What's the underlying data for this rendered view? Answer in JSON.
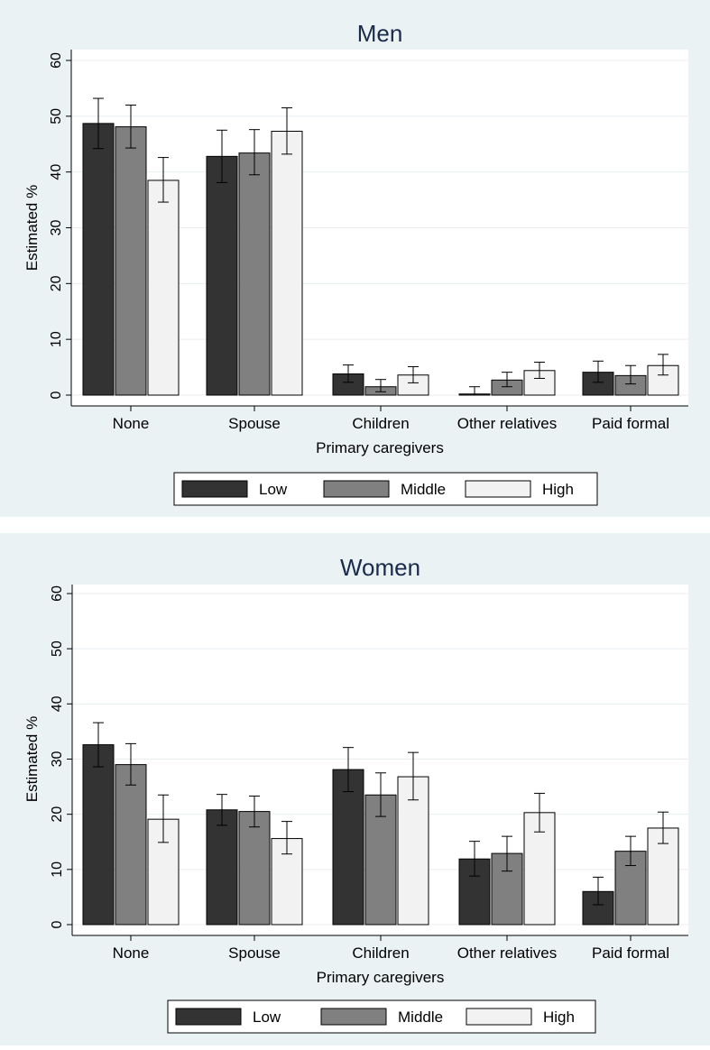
{
  "chart_data": [
    {
      "type": "bar",
      "title": "Men",
      "xlabel": "Primary caregivers",
      "ylabel": "Estimated %",
      "ylim": [
        0,
        60
      ],
      "yticks": [
        0,
        10,
        20,
        30,
        40,
        50,
        60
      ],
      "categories": [
        "None",
        "Spouse",
        "Children",
        "Other relatives",
        "Paid formal"
      ],
      "series": [
        {
          "name": "Low",
          "values": [
            48.7,
            42.8,
            3.8,
            0.2,
            4.1
          ],
          "ci_low": [
            44.2,
            38.1,
            2.3,
            0.0,
            2.3
          ],
          "ci_high": [
            53.2,
            47.5,
            5.4,
            1.5,
            6.1
          ]
        },
        {
          "name": "Middle",
          "values": [
            48.1,
            43.4,
            1.5,
            2.7,
            3.5
          ],
          "ci_low": [
            44.3,
            39.5,
            0.6,
            1.5,
            2.0
          ],
          "ci_high": [
            52.0,
            47.6,
            2.8,
            4.1,
            5.3
          ]
        },
        {
          "name": "High",
          "values": [
            38.5,
            47.3,
            3.6,
            4.4,
            5.3
          ],
          "ci_low": [
            34.6,
            43.2,
            2.2,
            3.0,
            3.6
          ],
          "ci_high": [
            42.6,
            51.5,
            5.1,
            5.9,
            7.3
          ]
        }
      ],
      "legend": [
        "Low",
        "Middle",
        "High"
      ],
      "legend_position": "bottom"
    },
    {
      "type": "bar",
      "title": "Women",
      "xlabel": "Primary caregivers",
      "ylabel": "Estimated %",
      "ylim": [
        0,
        60
      ],
      "yticks": [
        0,
        10,
        20,
        30,
        40,
        50,
        60
      ],
      "categories": [
        "None",
        "Spouse",
        "Children",
        "Other relatives",
        "Paid formal"
      ],
      "series": [
        {
          "name": "Low",
          "values": [
            32.6,
            20.8,
            28.1,
            11.9,
            6.0
          ],
          "ci_low": [
            28.6,
            18.0,
            24.1,
            8.8,
            3.6
          ],
          "ci_high": [
            36.6,
            23.6,
            32.1,
            15.1,
            8.6
          ]
        },
        {
          "name": "Middle",
          "values": [
            29.0,
            20.5,
            23.5,
            12.9,
            13.3
          ],
          "ci_low": [
            25.3,
            17.7,
            19.6,
            9.7,
            10.7
          ],
          "ci_high": [
            32.8,
            23.3,
            27.5,
            16.0,
            16.0
          ]
        },
        {
          "name": "High",
          "values": [
            19.1,
            15.6,
            26.8,
            20.3,
            17.5
          ],
          "ci_low": [
            14.9,
            12.8,
            22.6,
            16.8,
            14.7
          ],
          "ci_high": [
            23.5,
            18.7,
            31.2,
            23.8,
            20.4
          ]
        }
      ],
      "legend": [
        "Low",
        "Middle",
        "High"
      ],
      "legend_position": "bottom"
    }
  ],
  "colors": {
    "low": "#333333",
    "middle": "#808080",
    "high": "#f2f2f2",
    "background": "#eaf2f3",
    "title": "#1a2b4c",
    "grid": "#e8eef0"
  }
}
